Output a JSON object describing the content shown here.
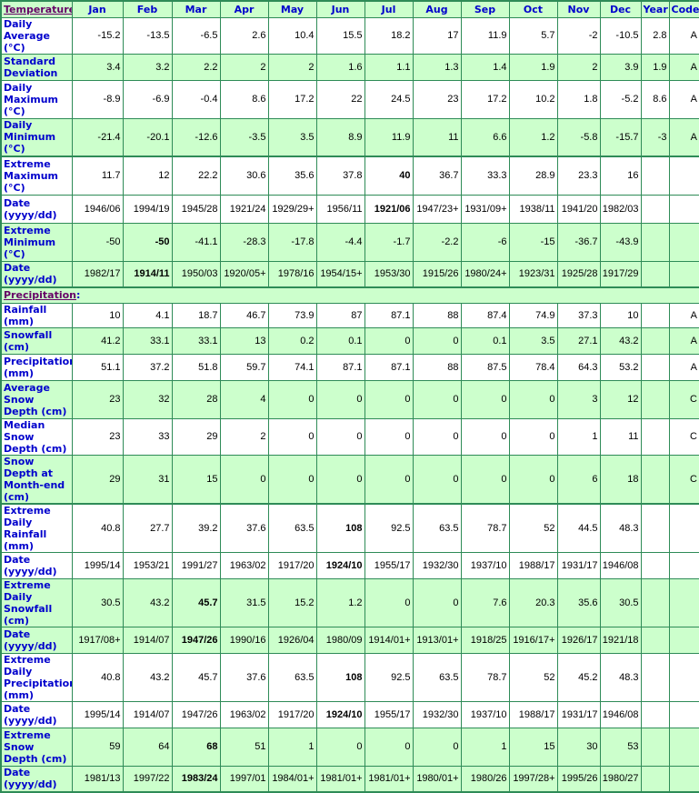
{
  "colors": {
    "green_row": "#ccffcc",
    "border": "#2e8b57",
    "label": "#0000cc",
    "section_link": "#660066"
  },
  "header": {
    "section": "Temperature",
    "colon": ":",
    "months": [
      "Jan",
      "Feb",
      "Mar",
      "Apr",
      "May",
      "Jun",
      "Jul",
      "Aug",
      "Sep",
      "Oct",
      "Nov",
      "Dec"
    ],
    "year": "Year",
    "code": "Code"
  },
  "precip_section": {
    "label": "Precipitation",
    "colon": ":"
  },
  "temperature_rows": [
    {
      "label": "Daily Average (°C)",
      "values": [
        "-15.2",
        "-13.5",
        "-6.5",
        "2.6",
        "10.4",
        "15.5",
        "18.2",
        "17",
        "11.9",
        "5.7",
        "-2",
        "-10.5"
      ],
      "year": "2.8",
      "code": "A",
      "bold": [],
      "shade": "w",
      "h": 28
    },
    {
      "label": "Standard Deviation",
      "values": [
        "3.4",
        "3.2",
        "2.2",
        "2",
        "2",
        "1.6",
        "1.1",
        "1.3",
        "1.4",
        "1.9",
        "2",
        "3.9"
      ],
      "year": "1.9",
      "code": "A",
      "bold": [],
      "shade": "g",
      "h": 29
    },
    {
      "label": "Daily Maximum (°C)",
      "values": [
        "-8.9",
        "-6.9",
        "-0.4",
        "8.6",
        "17.2",
        "22",
        "24.5",
        "23",
        "17.2",
        "10.2",
        "1.8",
        "-5.2"
      ],
      "year": "8.6",
      "code": "A",
      "bold": [],
      "shade": "w",
      "h": 42
    },
    {
      "label": "Daily Minimum (°C)",
      "values": [
        "-21.4",
        "-20.1",
        "-12.6",
        "-3.5",
        "3.5",
        "8.9",
        "11.9",
        "11",
        "6.6",
        "1.2",
        "-5.8",
        "-15.7"
      ],
      "year": "-3",
      "code": "A",
      "bold": [],
      "shade": "g",
      "h": 42
    },
    {
      "label": "Extreme Maximum (°C)",
      "values": [
        "11.7",
        "12",
        "22.2",
        "30.6",
        "35.6",
        "37.8",
        "40",
        "36.7",
        "33.3",
        "28.9",
        "23.3",
        "16"
      ],
      "year": "",
      "code": "",
      "bold": [
        6
      ],
      "shade": "w",
      "h": 42,
      "thick": true
    },
    {
      "label": "Date (yyyy/dd)",
      "values": [
        "1946/06",
        "1994/19",
        "1945/28",
        "1921/24",
        "1929/29+",
        "1956/11",
        "1921/06",
        "1947/23+",
        "1931/09+",
        "1938/11",
        "1941/20",
        "1982/03"
      ],
      "year": "",
      "code": "",
      "bold": [
        6
      ],
      "shade": "w",
      "h": 31
    },
    {
      "label": "Extreme Minimum (°C)",
      "values": [
        "-50",
        "-50",
        "-41.1",
        "-28.3",
        "-17.8",
        "-4.4",
        "-1.7",
        "-2.2",
        "-6",
        "-15",
        "-36.7",
        "-43.9"
      ],
      "year": "",
      "code": "",
      "bold": [
        1
      ],
      "shade": "g",
      "h": 42
    },
    {
      "label": "Date (yyyy/dd)",
      "values": [
        "1982/17",
        "1914/11",
        "1950/03",
        "1920/05+",
        "1978/16",
        "1954/15+",
        "1953/30",
        "1915/26",
        "1980/24+",
        "1923/31",
        "1925/28",
        "1917/29"
      ],
      "year": "",
      "code": "",
      "bold": [
        1
      ],
      "shade": "g",
      "h": 29
    }
  ],
  "precipitation_rows": [
    {
      "label": "Rainfall (mm)",
      "values": [
        "10",
        "4.1",
        "18.7",
        "46.7",
        "73.9",
        "87",
        "87.1",
        "88",
        "87.4",
        "74.9",
        "37.3",
        "10"
      ],
      "year": "",
      "code": "A",
      "bold": [],
      "shade": "w",
      "h": 16
    },
    {
      "label": "Snowfall (cm)",
      "values": [
        "41.2",
        "33.1",
        "33.1",
        "13",
        "0.2",
        "0.1",
        "0",
        "0",
        "0.1",
        "3.5",
        "27.1",
        "43.2"
      ],
      "year": "",
      "code": "A",
      "bold": [],
      "shade": "g",
      "h": 29
    },
    {
      "label": "Precipitation (mm)",
      "values": [
        "51.1",
        "37.2",
        "51.8",
        "59.7",
        "74.1",
        "87.1",
        "87.1",
        "88",
        "87.5",
        "78.4",
        "64.3",
        "53.2"
      ],
      "year": "",
      "code": "A",
      "bold": [],
      "shade": "w",
      "h": 29
    },
    {
      "label": "Average Snow Depth (cm)",
      "values": [
        "23",
        "32",
        "28",
        "4",
        "0",
        "0",
        "0",
        "0",
        "0",
        "0",
        "3",
        "12"
      ],
      "year": "",
      "code": "C",
      "bold": [],
      "shade": "g",
      "h": 42
    },
    {
      "label": "Median Snow Depth (cm)",
      "values": [
        "23",
        "33",
        "29",
        "2",
        "0",
        "0",
        "0",
        "0",
        "0",
        "0",
        "1",
        "11"
      ],
      "year": "",
      "code": "C",
      "bold": [],
      "shade": "w",
      "h": 29
    },
    {
      "label": "Snow Depth at Month-end (cm)",
      "values": [
        "29",
        "31",
        "15",
        "0",
        "0",
        "0",
        "0",
        "0",
        "0",
        "0",
        "6",
        "18"
      ],
      "year": "",
      "code": "C",
      "bold": [],
      "shade": "g",
      "h": 42
    },
    {
      "label": "Extreme Daily Rainfall (mm)",
      "values": [
        "40.8",
        "27.7",
        "39.2",
        "37.6",
        "63.5",
        "108",
        "92.5",
        "63.5",
        "78.7",
        "52",
        "44.5",
        "48.3"
      ],
      "year": "",
      "code": "",
      "bold": [
        5
      ],
      "shade": "w",
      "h": 29,
      "thick": true
    },
    {
      "label": "Date (yyyy/dd)",
      "values": [
        "1995/14",
        "1953/21",
        "1991/27",
        "1963/02",
        "1917/20",
        "1924/10",
        "1955/17",
        "1932/30",
        "1937/10",
        "1988/17",
        "1931/17",
        "1946/08"
      ],
      "year": "",
      "code": "",
      "bold": [
        5
      ],
      "shade": "w",
      "h": 29
    },
    {
      "label": "Extreme Daily Snowfall (cm)",
      "values": [
        "30.5",
        "43.2",
        "45.7",
        "31.5",
        "15.2",
        "1.2",
        "0",
        "0",
        "7.6",
        "20.3",
        "35.6",
        "30.5"
      ],
      "year": "",
      "code": "",
      "bold": [
        2
      ],
      "shade": "g",
      "h": 42
    },
    {
      "label": "Date (yyyy/dd)",
      "values": [
        "1917/08+",
        "1914/07",
        "1947/26",
        "1990/16",
        "1926/04",
        "1980/09",
        "1914/01+",
        "1913/01+",
        "1918/25",
        "1916/17+",
        "1926/17",
        "1921/18"
      ],
      "year": "",
      "code": "",
      "bold": [
        2
      ],
      "shade": "g",
      "h": 29
    },
    {
      "label": "Extreme Daily Precipitation (mm)",
      "values": [
        "40.8",
        "43.2",
        "45.7",
        "37.6",
        "63.5",
        "108",
        "92.5",
        "63.5",
        "78.7",
        "52",
        "45.2",
        "48.3"
      ],
      "year": "",
      "code": "",
      "bold": [
        5
      ],
      "shade": "w",
      "h": 42
    },
    {
      "label": "Date (yyyy/dd)",
      "values": [
        "1995/14",
        "1914/07",
        "1947/26",
        "1963/02",
        "1917/20",
        "1924/10",
        "1955/17",
        "1932/30",
        "1937/10",
        "1988/17",
        "1931/17",
        "1946/08"
      ],
      "year": "",
      "code": "",
      "bold": [
        5
      ],
      "shade": "w",
      "h": 29
    },
    {
      "label": "Extreme Snow Depth (cm)",
      "values": [
        "59",
        "64",
        "68",
        "51",
        "1",
        "0",
        "0",
        "0",
        "1",
        "15",
        "30",
        "53"
      ],
      "year": "",
      "code": "",
      "bold": [
        2
      ],
      "shade": "g",
      "h": 42
    },
    {
      "label": "Date (yyyy/dd)",
      "values": [
        "1981/13",
        "1997/22",
        "1983/24",
        "1997/01",
        "1984/01+",
        "1981/01+",
        "1981/01+",
        "1980/01+",
        "1980/26",
        "1997/28+",
        "1995/26",
        "1980/27"
      ],
      "year": "",
      "code": "",
      "bold": [
        2
      ],
      "shade": "g",
      "h": 29
    }
  ]
}
